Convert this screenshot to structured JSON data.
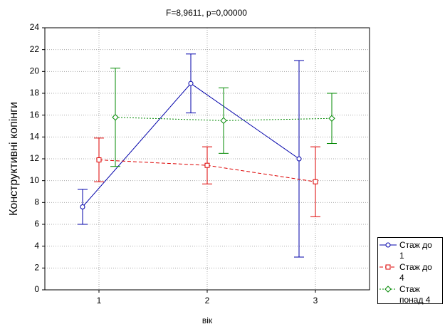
{
  "chart_data": {
    "type": "line",
    "title": "F=8,9611, p=0,00000",
    "x_label": "вік",
    "y_label": "Конструктивні копінги",
    "categories": [
      "1",
      "2",
      "3"
    ],
    "ylim": [
      0,
      24
    ],
    "yticks": [
      0,
      2,
      4,
      6,
      8,
      10,
      12,
      14,
      16,
      18,
      20,
      22,
      24
    ],
    "grid": true,
    "series": [
      {
        "name": "Стаж до 1",
        "color": "#0000aa",
        "line_style": "solid",
        "marker": "circle",
        "values": [
          7.6,
          18.9,
          12.0
        ],
        "errors": [
          1.6,
          2.7,
          9.0
        ]
      },
      {
        "name": "Стаж до 4",
        "color": "#dd0000",
        "line_style": "dashed",
        "marker": "square",
        "values": [
          11.9,
          11.4,
          9.9
        ],
        "errors": [
          2.0,
          1.7,
          3.2
        ]
      },
      {
        "name": "Стаж понад 4",
        "color": "#008800",
        "line_style": "dotted",
        "marker": "diamond",
        "values": [
          15.8,
          15.5,
          15.7
        ],
        "errors": [
          4.5,
          3.0,
          2.3
        ]
      }
    ]
  }
}
